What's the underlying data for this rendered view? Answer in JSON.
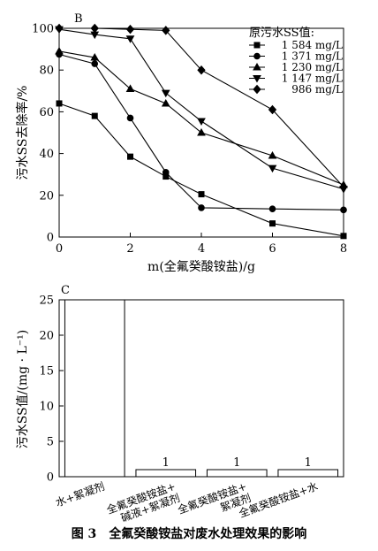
{
  "caption": {
    "number": "图 3",
    "text": "全氟癸酸铵盐对废水处理效果的影响"
  },
  "chart_data": [
    {
      "panel_label": "B",
      "type": "line",
      "xlabel": "m(全氟癸酸铵盐)/g",
      "ylabel": "污水SS去除率/%",
      "xlim": [
        0,
        8
      ],
      "ylim": [
        0,
        100
      ],
      "x_ticks": [
        "0",
        "2",
        "4",
        "6",
        "8"
      ],
      "y_ticks": [
        "0",
        "20",
        "40",
        "60",
        "80",
        "100"
      ],
      "grid": false,
      "legend_title": "原污水SS值:",
      "legend_position": "top-right",
      "series": [
        {
          "name": "1 584 mg/L",
          "marker": "square",
          "color": "#000000",
          "points": [
            [
              0,
              64
            ],
            [
              1,
              58
            ],
            [
              2,
              38.5
            ],
            [
              3,
              29
            ],
            [
              4,
              20.5
            ],
            [
              6,
              6.5
            ],
            [
              8,
              0.5
            ]
          ]
        },
        {
          "name": "1 371 mg/L",
          "marker": "circle",
          "color": "#000000",
          "points": [
            [
              0,
              87.5
            ],
            [
              1,
              83
            ],
            [
              2,
              57
            ],
            [
              3,
              31
            ],
            [
              4,
              14
            ],
            [
              6,
              13.5
            ],
            [
              8,
              13
            ]
          ]
        },
        {
          "name": "1 230 mg/L",
          "marker": "triangle",
          "color": "#000000",
          "points": [
            [
              0,
              89
            ],
            [
              1,
              86
            ],
            [
              2,
              71
            ],
            [
              3,
              64
            ],
            [
              4,
              50
            ],
            [
              6,
              39
            ],
            [
              8,
              25
            ]
          ]
        },
        {
          "name": "1 147 mg/L",
          "marker": "triangle-down",
          "color": "#000000",
          "points": [
            [
              0,
              99.5
            ],
            [
              1,
              97
            ],
            [
              2,
              95
            ],
            [
              3,
              69
            ],
            [
              4,
              55.5
            ],
            [
              6,
              33
            ],
            [
              8,
              23
            ]
          ]
        },
        {
          "name": "986 mg/L",
          "marker": "diamond",
          "color": "#000000",
          "points": [
            [
              0,
              100
            ],
            [
              1,
              100
            ],
            [
              2,
              99.5
            ],
            [
              3,
              99
            ],
            [
              4,
              80
            ],
            [
              6,
              61
            ],
            [
              8,
              24
            ]
          ]
        }
      ]
    },
    {
      "panel_label": "C",
      "type": "bar",
      "ylabel": "污水SS值/(mg · L⁻¹)",
      "xlabel": "",
      "ylim": [
        0,
        25
      ],
      "y_ticks": [
        "0",
        "5",
        "10",
        "15",
        "20",
        "25"
      ],
      "categories": [
        [
          "水+絮凝剂"
        ],
        [
          "全氟癸酸铵盐+",
          "碱液+絮凝剂"
        ],
        [
          "全氟癸酸铵盐+",
          "絮凝剂"
        ],
        [
          "全氟癸酸铵盐+水"
        ]
      ],
      "values": [
        25,
        1,
        1,
        1
      ],
      "data_labels": [
        "",
        "1",
        "1",
        "1"
      ]
    }
  ]
}
